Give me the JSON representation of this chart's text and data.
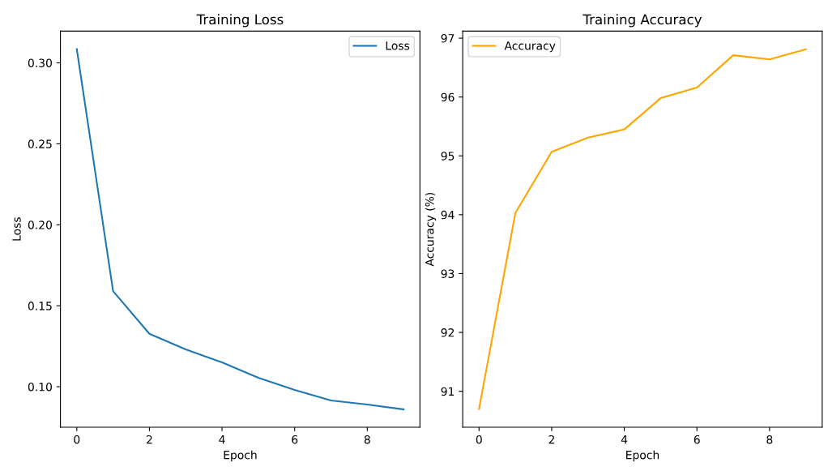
{
  "chart_data": [
    {
      "type": "line",
      "title": "Training Loss",
      "xlabel": "Epoch",
      "ylabel": "Loss",
      "x": [
        0,
        1,
        2,
        3,
        4,
        5,
        6,
        7,
        8,
        9
      ],
      "series": [
        {
          "name": "Loss",
          "color": "#1f77b4",
          "values": [
            0.3085,
            0.159,
            0.1327,
            0.123,
            0.115,
            0.1055,
            0.098,
            0.0915,
            0.089,
            0.086
          ]
        }
      ],
      "xlim": [
        -0.45,
        9.45
      ],
      "xticks": [
        0,
        2,
        4,
        6,
        8
      ],
      "ylim": [
        0.075,
        0.3196
      ],
      "yticks": [
        {
          "value": 0.1,
          "label": "0.10"
        },
        {
          "value": 0.15,
          "label": "0.15"
        },
        {
          "value": 0.2,
          "label": "0.20"
        },
        {
          "value": 0.25,
          "label": "0.25"
        },
        {
          "value": 0.3,
          "label": "0.30"
        }
      ],
      "legend": "top right",
      "grid": false
    },
    {
      "type": "line",
      "title": "Training Accuracy",
      "xlabel": "Epoch",
      "ylabel": "Accuracy (%)",
      "x": [
        0,
        1,
        2,
        3,
        4,
        5,
        6,
        7,
        8,
        9
      ],
      "series": [
        {
          "name": "Accuracy",
          "color": "#ffa500",
          "values": [
            90.7,
            94.03,
            95.07,
            95.31,
            95.45,
            95.98,
            96.16,
            96.71,
            96.64,
            96.81
          ]
        }
      ],
      "xlim": [
        -0.45,
        9.45
      ],
      "xticks": [
        0,
        2,
        4,
        6,
        8
      ],
      "ylim": [
        90.39,
        97.12
      ],
      "yticks": [
        91,
        92,
        93,
        94,
        95,
        96,
        97
      ],
      "legend": "top left",
      "grid": false
    }
  ]
}
